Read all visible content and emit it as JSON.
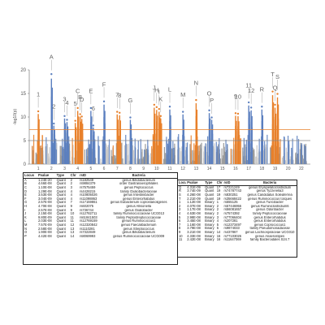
{
  "chart_data": {
    "type": "scatter",
    "subtype": "manhattan",
    "ylabel": "-log10(p)",
    "ylim": [
      0,
      20
    ],
    "yticks": [
      0,
      5,
      10,
      15,
      20
    ],
    "chromosomes": [
      "1",
      "2",
      "3",
      "4",
      "5",
      "6",
      "7",
      "8",
      "9",
      "10",
      "11",
      "12",
      "13",
      "14",
      "15",
      "16",
      "17",
      "18",
      "19",
      "20",
      "22"
    ],
    "thresholds": [
      {
        "value": 7.3,
        "color": "#e8802a"
      },
      {
        "value": 5.0,
        "color": "#8a8a8a"
      }
    ],
    "peaks": [
      {
        "label": "A",
        "chr": "2",
        "value": 19.1
      },
      {
        "label": "1",
        "chr": "1",
        "value": 11.2
      },
      {
        "label": "2",
        "chr": "2",
        "value": 8.6
      },
      {
        "label": "3",
        "chr": "3",
        "value": 10.2
      },
      {
        "label": "4",
        "chr": "3",
        "value": 9.4
      },
      {
        "label": "C",
        "chr": "4",
        "value": 11.9
      },
      {
        "label": "B",
        "chr": "4",
        "value": 10.6
      },
      {
        "label": "5",
        "chr": "4",
        "value": 9.2
      },
      {
        "label": "D",
        "chr": "4",
        "value": 10.1
      },
      {
        "label": "E",
        "chr": "5",
        "value": 11.9
      },
      {
        "label": "6",
        "chr": "5",
        "value": 8.2
      },
      {
        "label": "F",
        "chr": "6",
        "value": 13.3
      },
      {
        "label": "7",
        "chr": "7",
        "value": 11.1
      },
      {
        "label": "8",
        "chr": "7",
        "value": 10.9
      },
      {
        "label": "G",
        "chr": "8",
        "value": 9.9
      },
      {
        "label": "H",
        "chr": "10",
        "value": 12.1
      },
      {
        "label": "I",
        "chr": "10",
        "value": 11.7
      },
      {
        "label": "J",
        "chr": "10",
        "value": 12.6
      },
      {
        "label": "K",
        "chr": "10",
        "value": 10.2
      },
      {
        "label": "L",
        "chr": "11",
        "value": 12.2
      },
      {
        "label": "M",
        "chr": "12",
        "value": 11.1
      },
      {
        "label": "N",
        "chr": "13",
        "value": 13.6
      },
      {
        "label": "O",
        "chr": "14",
        "value": 11.4
      },
      {
        "label": "P",
        "chr": "14",
        "value": 9.9
      },
      {
        "label": "9",
        "chr": "16",
        "value": 10.8
      },
      {
        "label": "10",
        "chr": "16",
        "value": 10.7
      },
      {
        "label": "11",
        "chr": "17",
        "value": 13.1
      },
      {
        "label": "12",
        "chr": "17",
        "value": 12.0
      },
      {
        "label": "R",
        "chr": "18",
        "value": 12.2
      },
      {
        "label": "Q",
        "chr": "19",
        "value": 12.6
      },
      {
        "label": "S",
        "chr": "19",
        "value": 14.9
      },
      {
        "label": "T",
        "chr": "19",
        "value": 15.4
      }
    ],
    "colors": {
      "odd_gray": "#9a9a9a",
      "even_gray": "#c8c8c8",
      "orange": "#e8802a",
      "blue": "#5b7fbf"
    }
  },
  "tables": {
    "columns": [
      "Locus",
      "Pvalue",
      "Type",
      "Chr",
      "rsID",
      "Bacteria"
    ],
    "left": [
      [
        "A",
        "1.24E-20",
        "Quant",
        "2",
        "rs182549",
        "genus Bifidobacterium"
      ],
      [
        "B",
        "4.66E-08",
        "Quant",
        "2",
        "rs9884379",
        "order Gastranaerophilales"
      ],
      [
        "C",
        "1.10E-08",
        "Quant",
        "3",
        "rs7575459",
        "genus Peptococcus"
      ],
      [
        "D",
        "1.29E-08",
        "Quant",
        "4",
        "rs4428215",
        "family Oxalobacteraceae"
      ],
      [
        "E",
        "3.53E-08",
        "Quant",
        "4",
        "rs10805026",
        "genus Intestinibacter"
      ],
      [
        "F",
        "3.04E-09",
        "Quant",
        "4",
        "rs11098863",
        "genus Enterorhabdus"
      ],
      [
        "G",
        "2.57E-08",
        "Quant",
        "7",
        "rs17159861",
        "genus Eubacterium coprostanoligenes"
      ],
      [
        "H",
        "4.70E-08",
        "Quant",
        "9",
        "rs602075",
        "genus Allisonella"
      ],
      [
        "I",
        "2.57E-08",
        "Quant",
        "9",
        "rs736744",
        "genus Oxalobacter"
      ],
      [
        "J",
        "2.15E-08",
        "Quant",
        "10",
        "rs12782711",
        "family Ruminococcaceae UCG013"
      ],
      [
        "K",
        "9.80E-09",
        "Quant",
        "11",
        "rs61841503",
        "family Peptostreptococcaceae"
      ],
      [
        "L",
        "2.03E-08",
        "Quant",
        "11",
        "rs12769159",
        "genus Ruminococcus1"
      ],
      [
        "M",
        "7.57E-09",
        "Quant",
        "12",
        "rs12320842",
        "genus Faecalibacterium"
      ],
      [
        "N",
        "2.58E-08",
        "Quant",
        "13",
        "rs1110281",
        "genus Streptococcus"
      ],
      [
        "O",
        "1.90E-08",
        "Quant",
        "13",
        "rs7322849",
        "genus Bifidobacterium"
      ],
      [
        "P",
        "4.42E-08",
        "Quant",
        "14",
        "rs8069993",
        "genus Ruminococcaceae UCG009"
      ]
    ],
    "right": [
      [
        "Q",
        "4.31E-09",
        "Quant",
        "17",
        "rs7221249",
        "genus Erysipelatoclostridium"
      ],
      [
        "R",
        "3.74E-09",
        "Quant",
        "19",
        "rs74787743",
        "genus Tyzzerella3"
      ],
      [
        "S",
        "4.26E-08",
        "Quant",
        "19",
        "rs830251",
        "genus Candidatus Soleaferrea"
      ],
      [
        "T",
        "2.21E-09",
        "Quant",
        "19",
        "rs35668422",
        "genus Ruminococcus torques"
      ],
      [
        "1",
        "1.12E-08",
        "Binary",
        "1",
        "rs555125",
        "genus Turicibacter"
      ],
      [
        "2",
        "4.07E-08",
        "Binary",
        "2",
        "rs57446956",
        "genus Ruminiclostridium6"
      ],
      [
        "3",
        "1.17E-08",
        "Binary",
        "2",
        "rs56081657",
        "genus Odoribacter"
      ],
      [
        "4",
        "4.63E-08",
        "Binary",
        "2",
        "rs7574392",
        "family Peptococcaceae"
      ],
      [
        "5",
        "2.98E-08",
        "Binary",
        "3",
        "rs77066404",
        "genus Enterorhabdus"
      ],
      [
        "6",
        "3.45E-08",
        "Binary",
        "4",
        "rs207281",
        "genus Enterorhabdus"
      ],
      [
        "7",
        "1.16E-08",
        "Binary",
        "5",
        "rs12373497",
        "genus Coprococcus1"
      ],
      [
        "8",
        "3.79E-08",
        "Binary",
        "6",
        "rs9874033",
        "family Pseudomonadaceae"
      ],
      [
        "9",
        "3.21E-08",
        "Binary",
        "14",
        "rs437867",
        "genus Lachnospiraceae UCG010"
      ],
      [
        "10",
        "4.33E-08",
        "Binary",
        "16",
        "rs77103026",
        "genus Anaerostipes"
      ],
      [
        "11",
        "2.42E-08",
        "Binary",
        "16",
        "rs11647069",
        "family Bacteroidales S24.7"
      ]
    ]
  }
}
